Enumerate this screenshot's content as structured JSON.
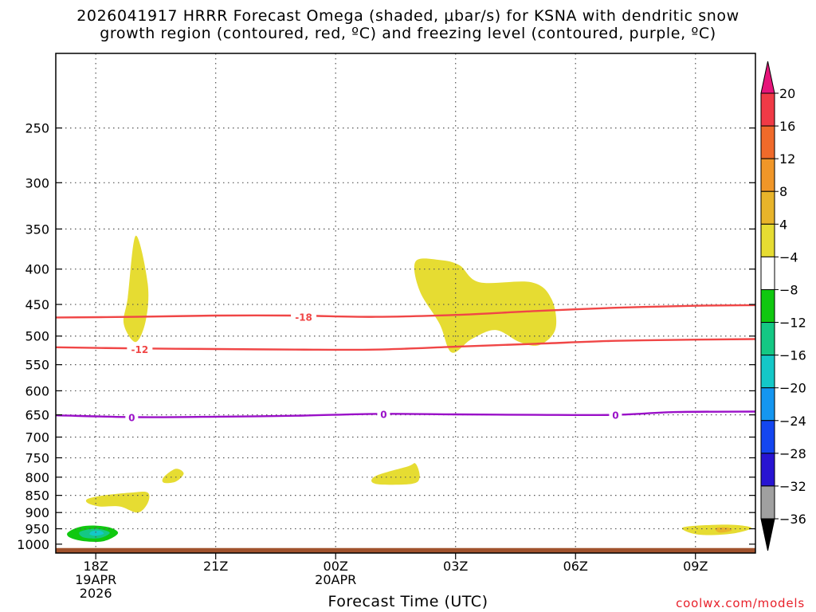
{
  "title_lines": [
    "2026041917 HRRR Forecast Omega (shaded, μbar/s) for KSNA with dendritic snow",
    "growth region (contoured, red, ºC) and freezing level (contoured, purple, ºC)"
  ],
  "credit": "coolwx.com/models",
  "colors": {
    "positive_4_8": "#e6dc32",
    "positive_8_12": "#eab42a",
    "negative_4_8": "#10c810",
    "negative_8_12": "#14c884",
    "negative_12_16": "#14c8c8",
    "dgz_contour": "#f04646",
    "freezing_contour": "#9a10c8",
    "terrain": "#a0522d"
  },
  "chart_data": {
    "type": "heatmap",
    "title": "2026041917 HRRR Forecast Omega (shaded, μbar/s) for KSNA with dendritic snow growth region (contoured, red, ºC) and freezing level (contoured, purple, ºC)",
    "xlabel": "Forecast Time (UTC)",
    "ylabel": "",
    "x_unit": "forecast hour from 2026-04-19 17Z",
    "xlim": [
      17,
      34.5
    ],
    "y_scale": "log",
    "ylim_hPa": [
      1030,
      195
    ],
    "x_ticks": [
      {
        "hour": 18,
        "label": "18Z",
        "sublabels": [
          "19APR",
          "2026"
        ]
      },
      {
        "hour": 21,
        "label": "21Z",
        "sublabels": []
      },
      {
        "hour": 24,
        "label": "00Z",
        "sublabels": [
          "20APR"
        ]
      },
      {
        "hour": 27,
        "label": "03Z",
        "sublabels": []
      },
      {
        "hour": 30,
        "label": "06Z",
        "sublabels": []
      },
      {
        "hour": 33,
        "label": "09Z",
        "sublabels": []
      }
    ],
    "y_ticks": [
      "250",
      "300",
      "350",
      "400",
      "450",
      "500",
      "550",
      "600",
      "650",
      "700",
      "750",
      "800",
      "850",
      "900",
      "950",
      "1000"
    ],
    "colorbar": {
      "labels": [
        "20",
        "16",
        "12",
        "8",
        "4",
        "−4",
        "−8",
        "−12",
        "−16",
        "−20",
        "−24",
        "−28",
        "−32",
        "−36"
      ],
      "colors": [
        "#f03a46",
        "#f06a2a",
        "#f09628",
        "#e8b42a",
        "#e6dc32",
        "#ffffff",
        "#10c810",
        "#14c884",
        "#14c8c8",
        "#1496f0",
        "#1446f0",
        "#2814d2",
        "#7a14c8",
        "#a0a0a0"
      ],
      "over_color": "#e6147a",
      "under_color": "#000000"
    },
    "contours": [
      {
        "label": "-18",
        "color": "dgz",
        "points": [
          [
            17,
            470
          ],
          [
            19,
            469
          ],
          [
            21,
            467
          ],
          [
            23,
            467
          ],
          [
            25,
            469
          ],
          [
            27,
            466
          ],
          [
            29,
            460
          ],
          [
            31,
            455
          ],
          [
            33,
            452
          ],
          [
            34.5,
            451
          ]
        ],
        "label_at": [
          23.2,
          469
        ]
      },
      {
        "label": "-12",
        "color": "dgz",
        "points": [
          [
            17,
            519
          ],
          [
            19,
            521
          ],
          [
            21,
            522
          ],
          [
            23,
            523
          ],
          [
            25,
            523
          ],
          [
            27,
            518
          ],
          [
            29,
            513
          ],
          [
            31,
            508
          ],
          [
            33,
            506
          ],
          [
            34.5,
            505
          ]
        ],
        "label_at": [
          19.1,
          522
        ]
      },
      {
        "label": "0",
        "color": "freezing",
        "points": [
          [
            17,
            651
          ],
          [
            19,
            655
          ],
          [
            21,
            654
          ],
          [
            23,
            652
          ],
          [
            25,
            648
          ],
          [
            27,
            649
          ],
          [
            29,
            650
          ],
          [
            31,
            650
          ],
          [
            32.5,
            644
          ],
          [
            34.5,
            643
          ]
        ],
        "label_at": [
          [
            18.9,
            655
          ],
          [
            25.2,
            648
          ],
          [
            31,
            650
          ]
        ]
      }
    ],
    "omega_regions": [
      {
        "level": "4 to 8",
        "color": "positive_4_8",
        "points": [
          [
            18.8,
            440
          ],
          [
            19.0,
            358
          ],
          [
            19.3,
            420
          ],
          [
            19.25,
            475
          ],
          [
            19.0,
            510
          ],
          [
            18.7,
            480
          ]
        ]
      },
      {
        "level": "4 to 8",
        "color": "positive_4_8",
        "points": [
          [
            26.0,
            390
          ],
          [
            26.6,
            388
          ],
          [
            27.1,
            395
          ],
          [
            27.6,
            418
          ],
          [
            28.9,
            418
          ],
          [
            29.4,
            442
          ],
          [
            29.5,
            488
          ],
          [
            29.1,
            515
          ],
          [
            28.6,
            510
          ],
          [
            28.0,
            490
          ],
          [
            27.4,
            505
          ],
          [
            26.9,
            528
          ],
          [
            26.6,
            480
          ],
          [
            26.1,
            430
          ]
        ]
      },
      {
        "level": "4 to 8",
        "color": "positive_4_8",
        "points": [
          [
            17.8,
            860
          ],
          [
            18.2,
            850
          ],
          [
            18.9,
            842
          ],
          [
            19.3,
            842
          ],
          [
            19.3,
            872
          ],
          [
            19.05,
            900
          ],
          [
            18.6,
            882
          ],
          [
            18.1,
            882
          ],
          [
            17.8,
            872
          ]
        ]
      },
      {
        "level": "4 to 8",
        "color": "positive_4_8",
        "points": [
          [
            19.7,
            800
          ],
          [
            20.0,
            778
          ],
          [
            20.2,
            790
          ],
          [
            20.0,
            812
          ],
          [
            19.7,
            815
          ]
        ]
      },
      {
        "level": "4 to 8",
        "color": "positive_4_8",
        "points": [
          [
            25.0,
            797
          ],
          [
            25.8,
            772
          ],
          [
            26.0,
            765
          ],
          [
            26.1,
            800
          ],
          [
            25.9,
            818
          ],
          [
            25.0,
            818
          ]
        ]
      },
      {
        "level": "4 to 8",
        "color": "positive_4_8",
        "points": [
          [
            32.7,
            945
          ],
          [
            33.4,
            938
          ],
          [
            34.0,
            938
          ],
          [
            34.4,
            948
          ],
          [
            33.9,
            966
          ],
          [
            33.2,
            970
          ],
          [
            32.8,
            960
          ]
        ]
      },
      {
        "level": "8 to 12",
        "color": "positive_8_12",
        "points": [
          [
            33.5,
            948
          ],
          [
            33.8,
            946
          ],
          [
            33.9,
            956
          ],
          [
            33.6,
            962
          ]
        ]
      },
      {
        "level": "-4 to -8",
        "color": "negative_4_8",
        "points": [
          [
            17.3,
            962
          ],
          [
            17.6,
            944
          ],
          [
            18.0,
            940
          ],
          [
            18.4,
            948
          ],
          [
            18.55,
            966
          ],
          [
            18.2,
            990
          ],
          [
            17.7,
            990
          ],
          [
            17.35,
            978
          ]
        ]
      },
      {
        "level": "-8 to -12",
        "color": "negative_8_12",
        "points": [
          [
            17.6,
            960
          ],
          [
            18.0,
            950
          ],
          [
            18.35,
            962
          ],
          [
            18.1,
            980
          ],
          [
            17.7,
            978
          ]
        ]
      },
      {
        "level": "-12 to -16",
        "color": "negative_12_16",
        "points": [
          [
            17.9,
            958
          ],
          [
            18.1,
            956
          ],
          [
            18.2,
            966
          ],
          [
            18.0,
            972
          ],
          [
            17.85,
            968
          ]
        ]
      }
    ],
    "terrain_top_hPa": 1013
  }
}
